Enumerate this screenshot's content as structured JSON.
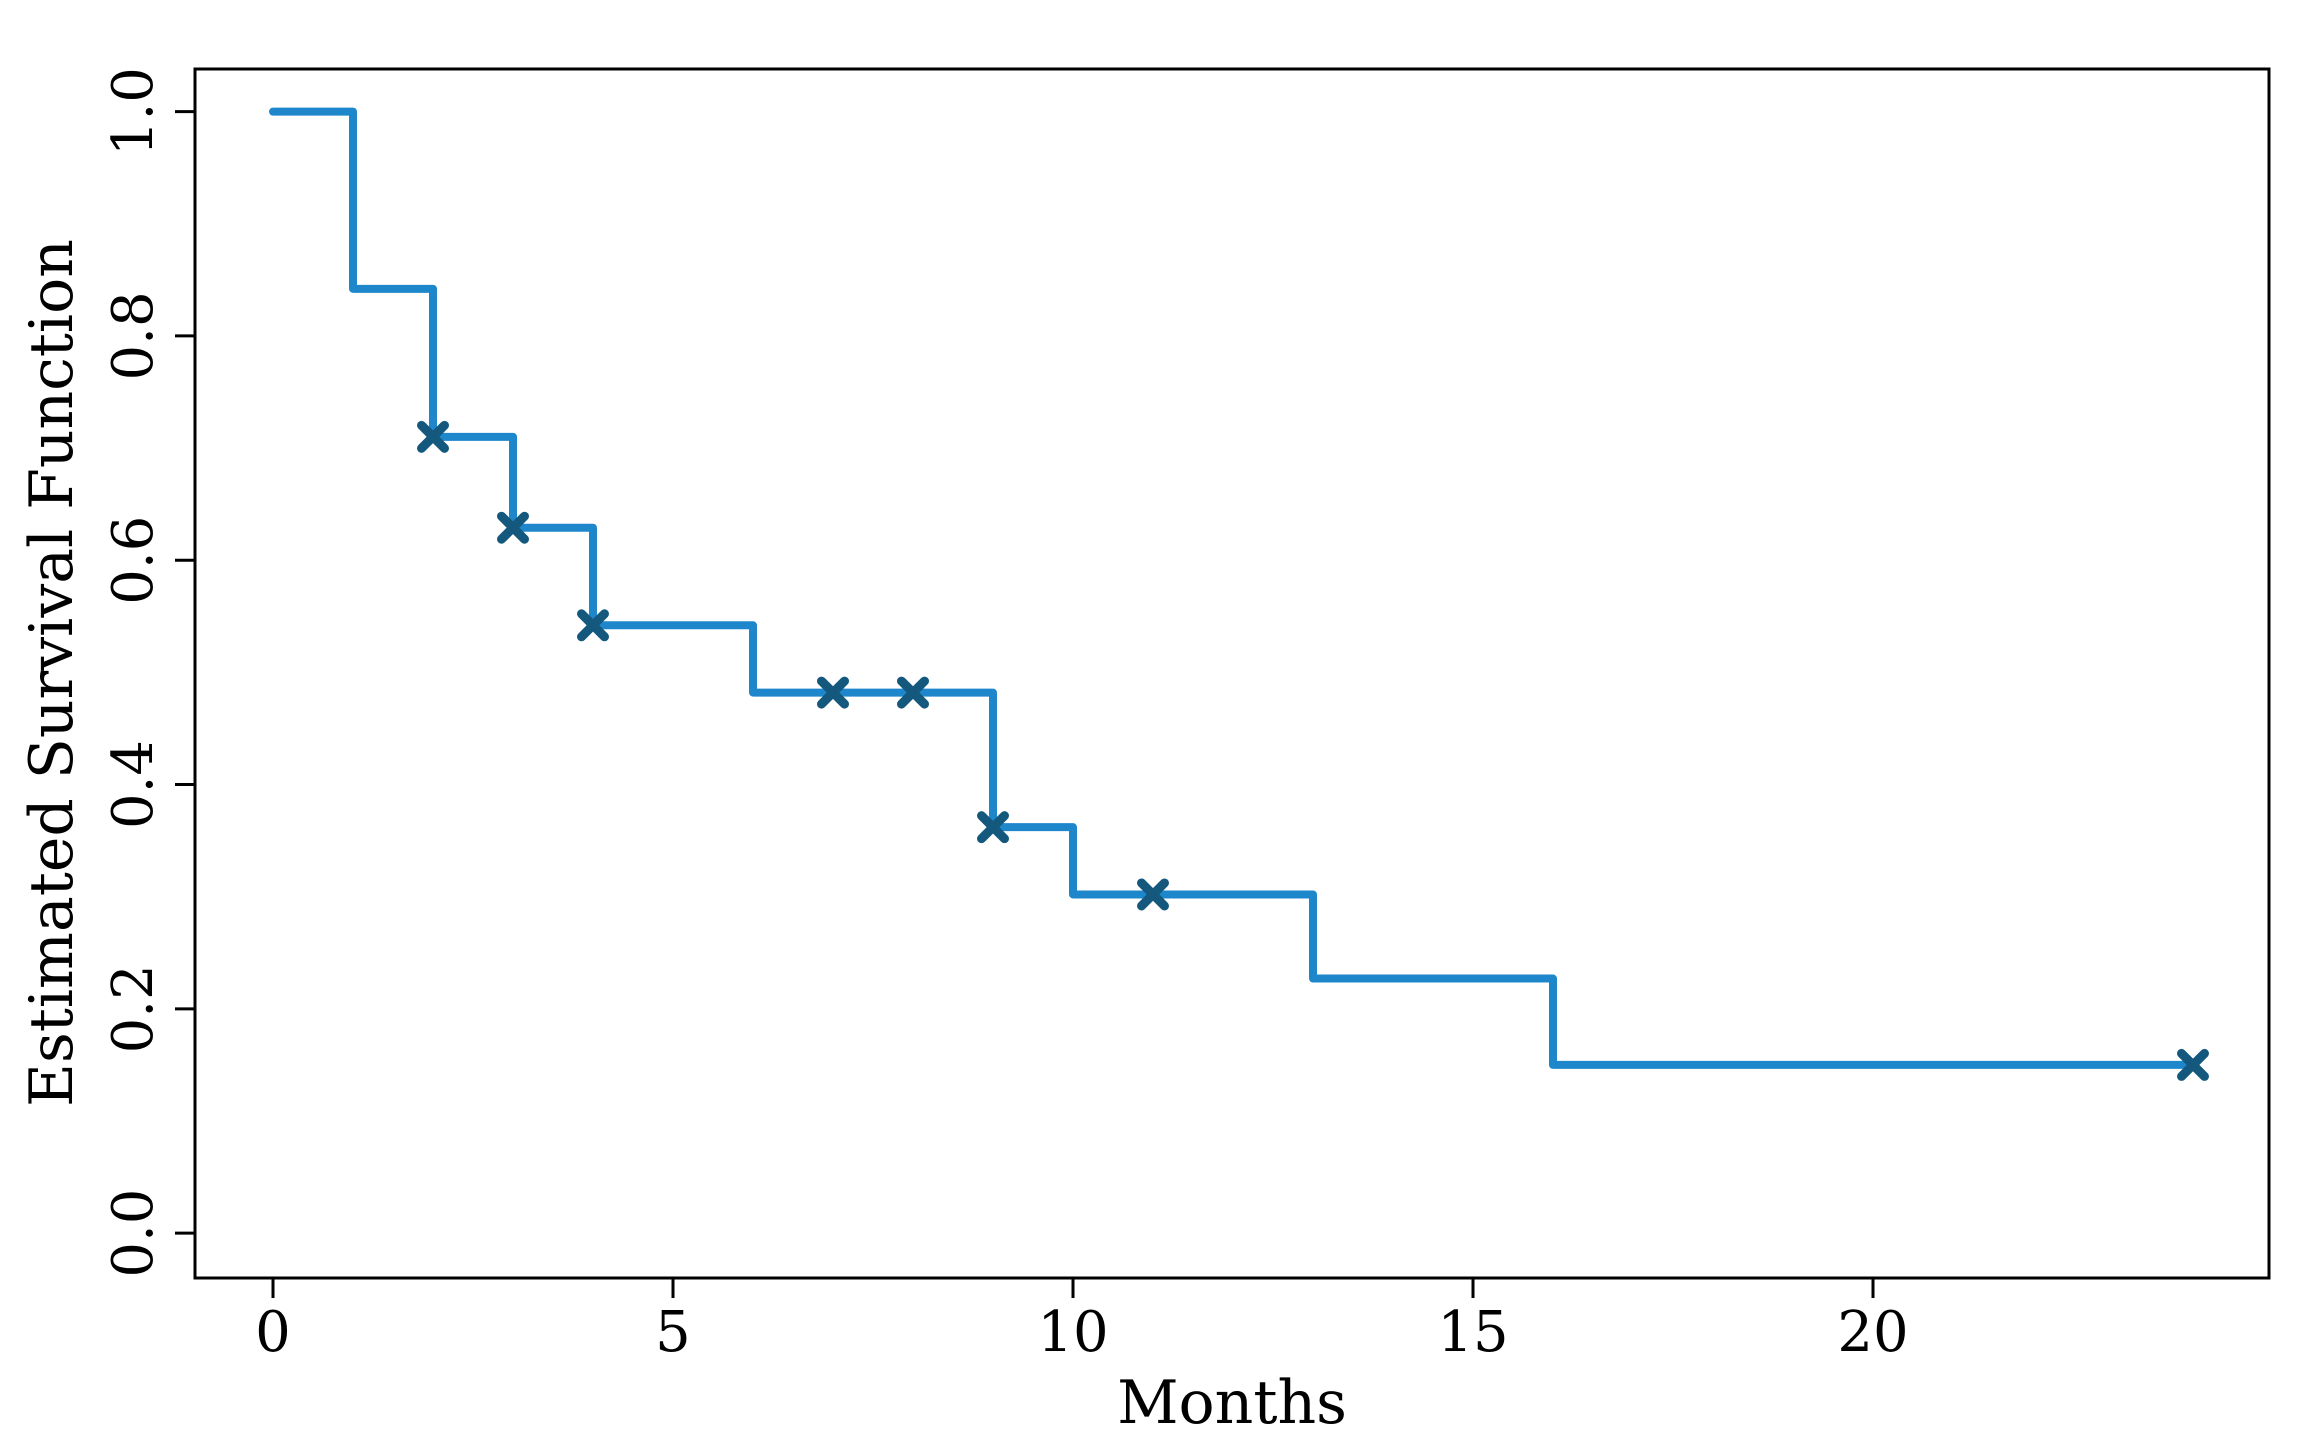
{
  "figure": {
    "background": "#ffffff"
  },
  "chart_data": {
    "type": "line",
    "subtype": "kaplan_meier_step",
    "title": "",
    "xlabel": "Months",
    "ylabel": "Estimated Survival Function",
    "x_ticks": [
      0,
      5,
      10,
      15,
      20
    ],
    "x_tick_labels": [
      "0",
      "5",
      "10",
      "15",
      "20"
    ],
    "y_ticks": [
      0.0,
      0.2,
      0.4,
      0.6,
      0.8,
      1.0
    ],
    "y_tick_labels": [
      "0.0",
      "0.2",
      "0.4",
      "0.6",
      "0.8",
      "1.0"
    ],
    "xlim": [
      -0.975,
      24.95
    ],
    "ylim": [
      -0.04,
      1.038
    ],
    "grid": false,
    "legend": null,
    "line_color": "#1e87cc",
    "censor_marker_color": "#14587e",
    "axis_color": "#000000",
    "survival_steps": [
      {
        "time": 0,
        "survival": 1.0
      },
      {
        "time": 1,
        "survival": 0.842
      },
      {
        "time": 2,
        "survival": 0.71
      },
      {
        "time": 3,
        "survival": 0.629
      },
      {
        "time": 4,
        "survival": 0.542
      },
      {
        "time": 6,
        "survival": 0.482
      },
      {
        "time": 9,
        "survival": 0.362
      },
      {
        "time": 10,
        "survival": 0.302
      },
      {
        "time": 13,
        "survival": 0.227
      },
      {
        "time": 16,
        "survival": 0.15
      }
    ],
    "curve_end_time": 24,
    "censor_marks": [
      {
        "time": 2,
        "survival": 0.71
      },
      {
        "time": 3,
        "survival": 0.629
      },
      {
        "time": 4,
        "survival": 0.542
      },
      {
        "time": 7,
        "survival": 0.482
      },
      {
        "time": 8,
        "survival": 0.482
      },
      {
        "time": 9,
        "survival": 0.362
      },
      {
        "time": 11,
        "survival": 0.302
      },
      {
        "time": 24,
        "survival": 0.15
      }
    ]
  }
}
